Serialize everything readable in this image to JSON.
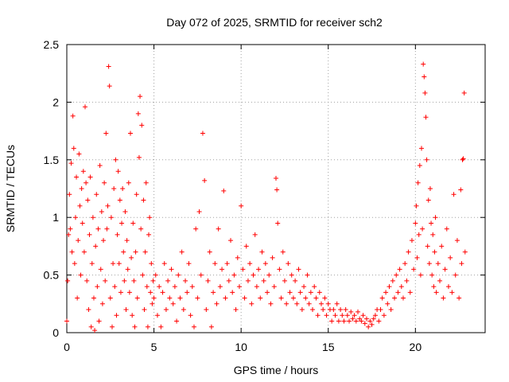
{
  "chart_data": {
    "type": "scatter",
    "title": "Day 072 of 2025, SRMTID for receiver sch2",
    "xlabel": "GPS time / hours",
    "ylabel": "SRMTID / TECUs",
    "xlim": [
      0,
      24
    ],
    "ylim": [
      0,
      2.5
    ],
    "xticks": [
      0,
      5,
      10,
      15,
      20
    ],
    "yticks": [
      0,
      0.5,
      1,
      1.5,
      2,
      2.5
    ],
    "xtick_labels": [
      "0",
      "5",
      "10",
      "15",
      "20"
    ],
    "ytick_labels": [
      "0",
      "0.5",
      "1",
      "1.5",
      "2",
      "2.5"
    ],
    "grid": true,
    "marker": "plus",
    "series": [
      {
        "name": "SRMTID",
        "color": "#ff0000",
        "points": [
          [
            0.0,
            0.1
          ],
          [
            0.05,
            0.45
          ],
          [
            0.1,
            0.85
          ],
          [
            0.15,
            1.2
          ],
          [
            0.2,
            0.9
          ],
          [
            0.25,
            1.47
          ],
          [
            0.3,
            0.7
          ],
          [
            0.35,
            1.88
          ],
          [
            0.4,
            1.6
          ],
          [
            0.45,
            0.6
          ],
          [
            0.5,
            1.0
          ],
          [
            0.55,
            1.35
          ],
          [
            0.6,
            0.3
          ],
          [
            0.65,
            0.8
          ],
          [
            0.7,
            1.55
          ],
          [
            0.75,
            1.1
          ],
          [
            0.8,
            0.5
          ],
          [
            0.85,
            1.25
          ],
          [
            0.9,
            0.95
          ],
          [
            0.95,
            1.4
          ],
          [
            1.0,
            0.7
          ],
          [
            1.05,
            1.96
          ],
          [
            1.1,
            1.3
          ],
          [
            1.15,
            0.45
          ],
          [
            1.2,
            1.15
          ],
          [
            1.25,
            0.2
          ],
          [
            1.3,
            0.85
          ],
          [
            1.35,
            1.35
          ],
          [
            1.4,
            0.05
          ],
          [
            1.45,
            0.6
          ],
          [
            1.5,
            1.0
          ],
          [
            1.55,
            0.3
          ],
          [
            1.6,
            0.02
          ],
          [
            1.65,
            0.75
          ],
          [
            1.7,
            1.2
          ],
          [
            1.75,
            0.4
          ],
          [
            1.8,
            0.9
          ],
          [
            1.85,
            0.1
          ],
          [
            1.9,
            1.45
          ],
          [
            1.95,
            0.55
          ],
          [
            2.0,
            1.05
          ],
          [
            2.05,
            0.25
          ],
          [
            2.1,
            0.8
          ],
          [
            2.15,
            1.3
          ],
          [
            2.2,
            0.45
          ],
          [
            2.25,
            1.73
          ],
          [
            2.3,
            0.9
          ],
          [
            2.35,
            1.1
          ],
          [
            2.4,
            2.31
          ],
          [
            2.45,
            2.14
          ],
          [
            2.5,
            0.3
          ],
          [
            2.55,
            1.0
          ],
          [
            2.6,
            0.05
          ],
          [
            2.65,
            0.6
          ],
          [
            2.7,
            1.25
          ],
          [
            2.75,
            0.4
          ],
          [
            2.8,
            1.5
          ],
          [
            2.85,
            0.15
          ],
          [
            2.9,
            0.85
          ],
          [
            2.95,
            1.4
          ],
          [
            3.0,
            0.6
          ],
          [
            3.05,
            1.15
          ],
          [
            3.1,
            0.35
          ],
          [
            3.15,
            0.95
          ],
          [
            3.2,
            1.25
          ],
          [
            3.25,
            0.7
          ],
          [
            3.3,
            0.45
          ],
          [
            3.35,
            1.05
          ],
          [
            3.4,
            0.2
          ],
          [
            3.45,
            0.8
          ],
          [
            3.5,
            0.55
          ],
          [
            3.55,
            1.3
          ],
          [
            3.6,
            0.35
          ],
          [
            3.65,
            1.73
          ],
          [
            3.7,
            0.65
          ],
          [
            3.75,
            0.15
          ],
          [
            3.8,
            0.95
          ],
          [
            3.85,
            0.45
          ],
          [
            3.9,
            0.05
          ],
          [
            3.95,
            0.7
          ],
          [
            4.0,
            1.2
          ],
          [
            4.05,
            0.3
          ],
          [
            4.1,
            1.9
          ],
          [
            4.15,
            1.52
          ],
          [
            4.2,
            2.05
          ],
          [
            4.25,
            0.9
          ],
          [
            4.3,
            1.8
          ],
          [
            4.35,
            0.5
          ],
          [
            4.4,
            1.15
          ],
          [
            4.45,
            0.2
          ],
          [
            4.5,
            0.7
          ],
          [
            4.55,
            1.3
          ],
          [
            4.6,
            0.4
          ],
          [
            4.65,
            0.05
          ],
          [
            4.7,
            0.85
          ],
          [
            4.75,
            1.0
          ],
          [
            4.8,
            0.35
          ],
          [
            4.85,
            0.6
          ],
          [
            4.9,
            0.25
          ],
          [
            4.95,
            0.45
          ],
          [
            5.0,
            0.3
          ],
          [
            5.1,
            0.5
          ],
          [
            5.2,
            0.15
          ],
          [
            5.3,
            0.4
          ],
          [
            5.4,
            0.05
          ],
          [
            5.5,
            0.35
          ],
          [
            5.6,
            0.6
          ],
          [
            5.7,
            0.2
          ],
          [
            5.8,
            0.45
          ],
          [
            5.9,
            0.3
          ],
          [
            6.0,
            0.55
          ],
          [
            6.1,
            0.25
          ],
          [
            6.2,
            0.4
          ],
          [
            6.3,
            0.1
          ],
          [
            6.4,
            0.5
          ],
          [
            6.5,
            0.3
          ],
          [
            6.6,
            0.7
          ],
          [
            6.7,
            0.2
          ],
          [
            6.8,
            0.45
          ],
          [
            6.9,
            0.35
          ],
          [
            7.0,
            0.6
          ],
          [
            7.1,
            0.15
          ],
          [
            7.2,
            0.4
          ],
          [
            7.3,
            0.05
          ],
          [
            7.4,
            0.9
          ],
          [
            7.5,
            0.3
          ],
          [
            7.6,
            1.05
          ],
          [
            7.7,
            0.5
          ],
          [
            7.8,
            1.73
          ],
          [
            7.9,
            1.32
          ],
          [
            8.0,
            0.2
          ],
          [
            8.1,
            0.45
          ],
          [
            8.2,
            0.7
          ],
          [
            8.3,
            0.05
          ],
          [
            8.4,
            0.35
          ],
          [
            8.5,
            0.6
          ],
          [
            8.6,
            0.25
          ],
          [
            8.7,
            0.9
          ],
          [
            8.8,
            0.4
          ],
          [
            8.9,
            0.55
          ],
          [
            9.0,
            1.23
          ],
          [
            9.1,
            0.3
          ],
          [
            9.2,
            0.6
          ],
          [
            9.3,
            0.45
          ],
          [
            9.4,
            0.8
          ],
          [
            9.5,
            0.35
          ],
          [
            9.6,
            0.5
          ],
          [
            9.7,
            0.2
          ],
          [
            9.8,
            0.65
          ],
          [
            9.9,
            0.4
          ],
          [
            10.0,
            1.1
          ],
          [
            10.1,
            0.55
          ],
          [
            10.2,
            0.3
          ],
          [
            10.3,
            0.75
          ],
          [
            10.4,
            0.45
          ],
          [
            10.5,
            0.6
          ],
          [
            10.6,
            0.25
          ],
          [
            10.7,
            0.5
          ],
          [
            10.8,
            0.85
          ],
          [
            10.9,
            0.4
          ],
          [
            11.0,
            0.55
          ],
          [
            11.1,
            0.3
          ],
          [
            11.2,
            0.7
          ],
          [
            11.3,
            0.45
          ],
          [
            11.4,
            0.6
          ],
          [
            11.5,
            0.35
          ],
          [
            11.6,
            0.5
          ],
          [
            11.7,
            0.25
          ],
          [
            11.8,
            0.65
          ],
          [
            11.9,
            0.4
          ],
          [
            12.0,
            1.34
          ],
          [
            12.05,
            1.24
          ],
          [
            12.1,
            0.95
          ],
          [
            12.2,
            0.55
          ],
          [
            12.3,
            0.3
          ],
          [
            12.4,
            0.7
          ],
          [
            12.5,
            0.45
          ],
          [
            12.6,
            0.25
          ],
          [
            12.7,
            0.6
          ],
          [
            12.8,
            0.35
          ],
          [
            12.9,
            0.5
          ],
          [
            13.0,
            0.3
          ],
          [
            13.1,
            0.45
          ],
          [
            13.2,
            0.25
          ],
          [
            13.3,
            0.55
          ],
          [
            13.4,
            0.35
          ],
          [
            13.5,
            0.2
          ],
          [
            13.6,
            0.4
          ],
          [
            13.7,
            0.3
          ],
          [
            13.8,
            0.5
          ],
          [
            13.9,
            0.25
          ],
          [
            14.0,
            0.35
          ],
          [
            14.1,
            0.2
          ],
          [
            14.2,
            0.4
          ],
          [
            14.3,
            0.3
          ],
          [
            14.4,
            0.15
          ],
          [
            14.5,
            0.35
          ],
          [
            14.6,
            0.25
          ],
          [
            14.7,
            0.2
          ],
          [
            14.8,
            0.3
          ],
          [
            14.9,
            0.15
          ],
          [
            15.0,
            0.25
          ],
          [
            15.1,
            0.2
          ],
          [
            15.2,
            0.1
          ],
          [
            15.3,
            0.2
          ],
          [
            15.4,
            0.15
          ],
          [
            15.5,
            0.25
          ],
          [
            15.6,
            0.1
          ],
          [
            15.7,
            0.2
          ],
          [
            15.8,
            0.15
          ],
          [
            15.9,
            0.1
          ],
          [
            16.0,
            0.2
          ],
          [
            16.1,
            0.15
          ],
          [
            16.2,
            0.1
          ],
          [
            16.3,
            0.18
          ],
          [
            16.4,
            0.12
          ],
          [
            16.5,
            0.15
          ],
          [
            16.6,
            0.1
          ],
          [
            16.7,
            0.18
          ],
          [
            16.8,
            0.12
          ],
          [
            16.9,
            0.1
          ],
          [
            17.0,
            0.15
          ],
          [
            17.1,
            0.08
          ],
          [
            17.2,
            0.12
          ],
          [
            17.3,
            0.05
          ],
          [
            17.4,
            0.1
          ],
          [
            17.5,
            0.07
          ],
          [
            17.6,
            0.12
          ],
          [
            17.7,
            0.15
          ],
          [
            17.8,
            0.2
          ],
          [
            17.9,
            0.1
          ],
          [
            18.0,
            0.2
          ],
          [
            18.1,
            0.3
          ],
          [
            18.2,
            0.15
          ],
          [
            18.3,
            0.35
          ],
          [
            18.4,
            0.25
          ],
          [
            18.5,
            0.4
          ],
          [
            18.6,
            0.2
          ],
          [
            18.7,
            0.45
          ],
          [
            18.8,
            0.3
          ],
          [
            18.9,
            0.5
          ],
          [
            19.0,
            0.35
          ],
          [
            19.1,
            0.55
          ],
          [
            19.2,
            0.4
          ],
          [
            19.3,
            0.3
          ],
          [
            19.4,
            0.6
          ],
          [
            19.5,
            0.45
          ],
          [
            19.6,
            0.7
          ],
          [
            19.7,
            0.35
          ],
          [
            19.8,
            0.8
          ],
          [
            19.9,
            0.55
          ],
          [
            20.0,
            0.95
          ],
          [
            20.05,
            1.1
          ],
          [
            20.1,
            0.65
          ],
          [
            20.15,
            1.3
          ],
          [
            20.2,
            0.85
          ],
          [
            20.25,
            1.45
          ],
          [
            20.3,
            0.5
          ],
          [
            20.35,
            1.6
          ],
          [
            20.4,
            0.9
          ],
          [
            20.45,
            2.33
          ],
          [
            20.5,
            2.22
          ],
          [
            20.55,
            2.08
          ],
          [
            20.6,
            1.87
          ],
          [
            20.65,
            1.5
          ],
          [
            20.7,
            0.75
          ],
          [
            20.75,
            1.15
          ],
          [
            20.8,
            0.6
          ],
          [
            20.85,
            1.25
          ],
          [
            20.9,
            0.95
          ],
          [
            20.95,
            0.5
          ],
          [
            21.0,
            0.85
          ],
          [
            21.05,
            0.4
          ],
          [
            21.1,
            0.7
          ],
          [
            21.15,
            1.0
          ],
          [
            21.2,
            0.35
          ],
          [
            21.3,
            0.6
          ],
          [
            21.4,
            0.45
          ],
          [
            21.5,
            0.75
          ],
          [
            21.6,
            0.3
          ],
          [
            21.7,
            0.55
          ],
          [
            21.8,
            0.9
          ],
          [
            21.9,
            0.4
          ],
          [
            22.0,
            0.65
          ],
          [
            22.1,
            0.35
          ],
          [
            22.2,
            1.2
          ],
          [
            22.3,
            0.5
          ],
          [
            22.4,
            0.8
          ],
          [
            22.5,
            0.3
          ],
          [
            22.6,
            1.24
          ],
          [
            22.65,
            0.6
          ],
          [
            22.7,
            1.5
          ],
          [
            22.75,
            1.51
          ],
          [
            22.8,
            2.08
          ],
          [
            22.85,
            0.7
          ]
        ]
      }
    ]
  }
}
